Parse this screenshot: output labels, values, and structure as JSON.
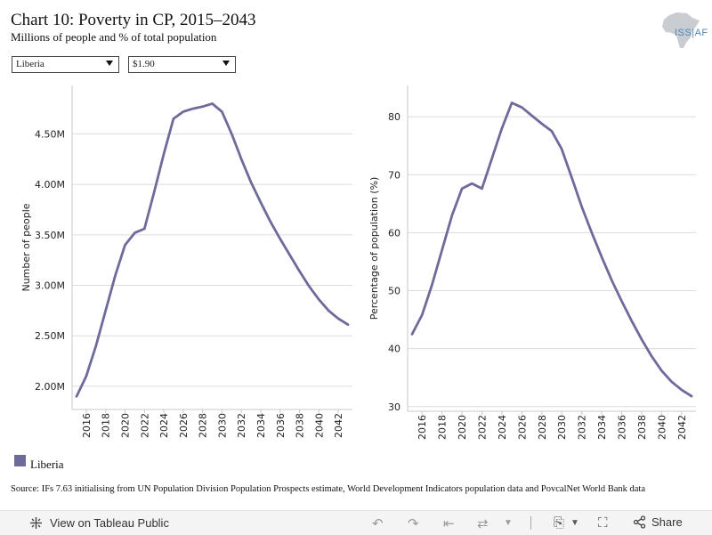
{
  "header": {
    "title": "Chart 10: Poverty in CP, 2015–2043",
    "subtitle": "Millions of people and % of total population",
    "logo_text": "ISS|AF"
  },
  "filters": {
    "country": "Liberia",
    "poverty_line": "$1.90"
  },
  "chart_data": [
    {
      "type": "line",
      "xlabel": "",
      "ylabel": "Number of people",
      "x": [
        2015,
        2016,
        2017,
        2018,
        2019,
        2020,
        2021,
        2022,
        2023,
        2024,
        2025,
        2026,
        2027,
        2028,
        2029,
        2030,
        2031,
        2032,
        2033,
        2034,
        2035,
        2036,
        2037,
        2038,
        2039,
        2040,
        2041,
        2042,
        2043
      ],
      "x_ticks": [
        "2016",
        "2018",
        "2020",
        "2022",
        "2024",
        "2026",
        "2028",
        "2030",
        "2032",
        "2034",
        "2036",
        "2038",
        "2040",
        "2042"
      ],
      "y_ticks": [
        "2.00M",
        "2.50M",
        "3.00M",
        "3.50M",
        "4.00M",
        "4.50M"
      ],
      "ylim": [
        1.77,
        4.98
      ],
      "series": [
        {
          "name": "Liberia",
          "values": [
            1.9,
            2.1,
            2.4,
            2.75,
            3.1,
            3.4,
            3.52,
            3.56,
            3.92,
            4.3,
            4.65,
            4.72,
            4.75,
            4.77,
            4.8,
            4.72,
            4.5,
            4.25,
            4.02,
            3.82,
            3.63,
            3.46,
            3.3,
            3.14,
            2.99,
            2.86,
            2.75,
            2.67,
            2.61
          ]
        }
      ],
      "grid": true
    },
    {
      "type": "line",
      "xlabel": "",
      "ylabel": "Percentage of population (%)",
      "x": [
        2015,
        2016,
        2017,
        2018,
        2019,
        2020,
        2021,
        2022,
        2023,
        2024,
        2025,
        2026,
        2027,
        2028,
        2029,
        2030,
        2031,
        2032,
        2033,
        2034,
        2035,
        2036,
        2037,
        2038,
        2039,
        2040,
        2041,
        2042,
        2043
      ],
      "x_ticks": [
        "2016",
        "2018",
        "2020",
        "2022",
        "2024",
        "2026",
        "2028",
        "2030",
        "2032",
        "2034",
        "2036",
        "2038",
        "2040",
        "2042"
      ],
      "y_ticks": [
        "30",
        "40",
        "50",
        "60",
        "70",
        "80"
      ],
      "ylim": [
        29.2,
        85.4
      ],
      "series": [
        {
          "name": "Liberia",
          "values": [
            42.5,
            45.8,
            51.0,
            57.0,
            63.0,
            67.6,
            68.5,
            67.6,
            72.8,
            78.0,
            82.4,
            81.6,
            80.2,
            78.8,
            77.5,
            74.4,
            69.5,
            64.5,
            60.0,
            55.8,
            51.8,
            48.2,
            44.8,
            41.6,
            38.7,
            36.2,
            34.3,
            32.9,
            31.8
          ]
        }
      ],
      "grid": true
    }
  ],
  "legend": {
    "label": "Liberia",
    "color": "#6e6a9a"
  },
  "source": "Source: IFs 7.63 initialising from UN Population Division Population Prospects estimate, World Development Indicators population data and PovcalNet World Bank data",
  "footer": {
    "view_label": "View on Tableau Public",
    "share_label": "Share"
  },
  "colors": {
    "line": "#6e6a9a",
    "grid": "#dcdcdc",
    "axis": "#c8c8c8",
    "logo": "#4a86b8"
  }
}
